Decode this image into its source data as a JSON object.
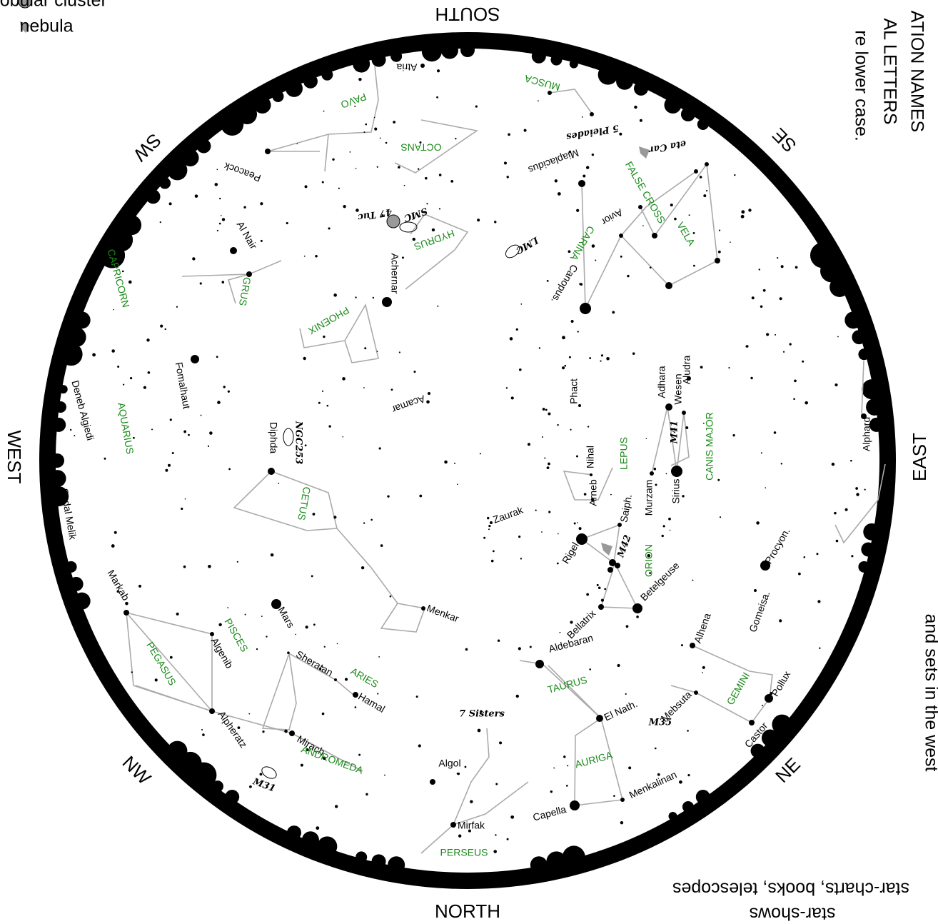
{
  "legend": [
    "globular cluster",
    "nebula"
  ],
  "compass": [
    "SOUTH",
    "SE",
    "EAST",
    "NE",
    "NORTH",
    "NW",
    "WEST",
    "SW"
  ],
  "margin_text": [
    "ATION NAMES",
    "AL LETTERS",
    "re lower case.",
    "and sets in the west",
    "star-charts, books, telescopes",
    "star-shows"
  ],
  "stars": [
    "Atria",
    "Peacock",
    "Al Nair",
    "Fomalhaut",
    "Deneb Algiedi",
    "Sadal Melik",
    "Markab",
    "Algenib",
    "Alpheratz",
    "Mirach",
    "Algol",
    "Mirfak",
    "Capella",
    "Menkalinan",
    "El Nath.",
    "Castor",
    "Pollux",
    "Mebsuta",
    "Alhena",
    "Gomeisa.",
    "Procyon.",
    "Alphard",
    "Sirius",
    "Murzam",
    "Adhara",
    "Wesen",
    "Aludra",
    "Betelgeuse",
    "Bellatrix",
    "Rigel",
    "Saiph.",
    "Arneb",
    "Nihal",
    "Phact",
    "Aldebaran",
    "Hamal",
    "Sheratan",
    "Menkar",
    "Zaurak",
    "Acamar",
    "Diphda",
    "Achernar",
    "Canopus.",
    "Miaplacidus",
    "Avior",
    "Mars"
  ],
  "constellations": [
    "PAVO",
    "OCTANS",
    "MUSCA",
    "HYDRUS",
    "GRUS",
    "PHOENIX",
    "CAPRICORN",
    "AQUARIUS",
    "CETUS",
    "PISCES",
    "PEGASUS",
    "ARIES",
    "ANDROMEDA",
    "PERSEUS",
    "AURIGA",
    "TAURUS",
    "GEMINI",
    "ORION",
    "LEPUS",
    "CANIS MAJOR",
    "CARINA",
    "FALSE CROSS",
    "VELA"
  ],
  "deep_sky": [
    "47 Tuc",
    "SMC",
    "LMC",
    "NGC253",
    "M31",
    "M42",
    "M41",
    "M35",
    "7 Sisters",
    "5 Pleiades",
    "eta Car"
  ]
}
